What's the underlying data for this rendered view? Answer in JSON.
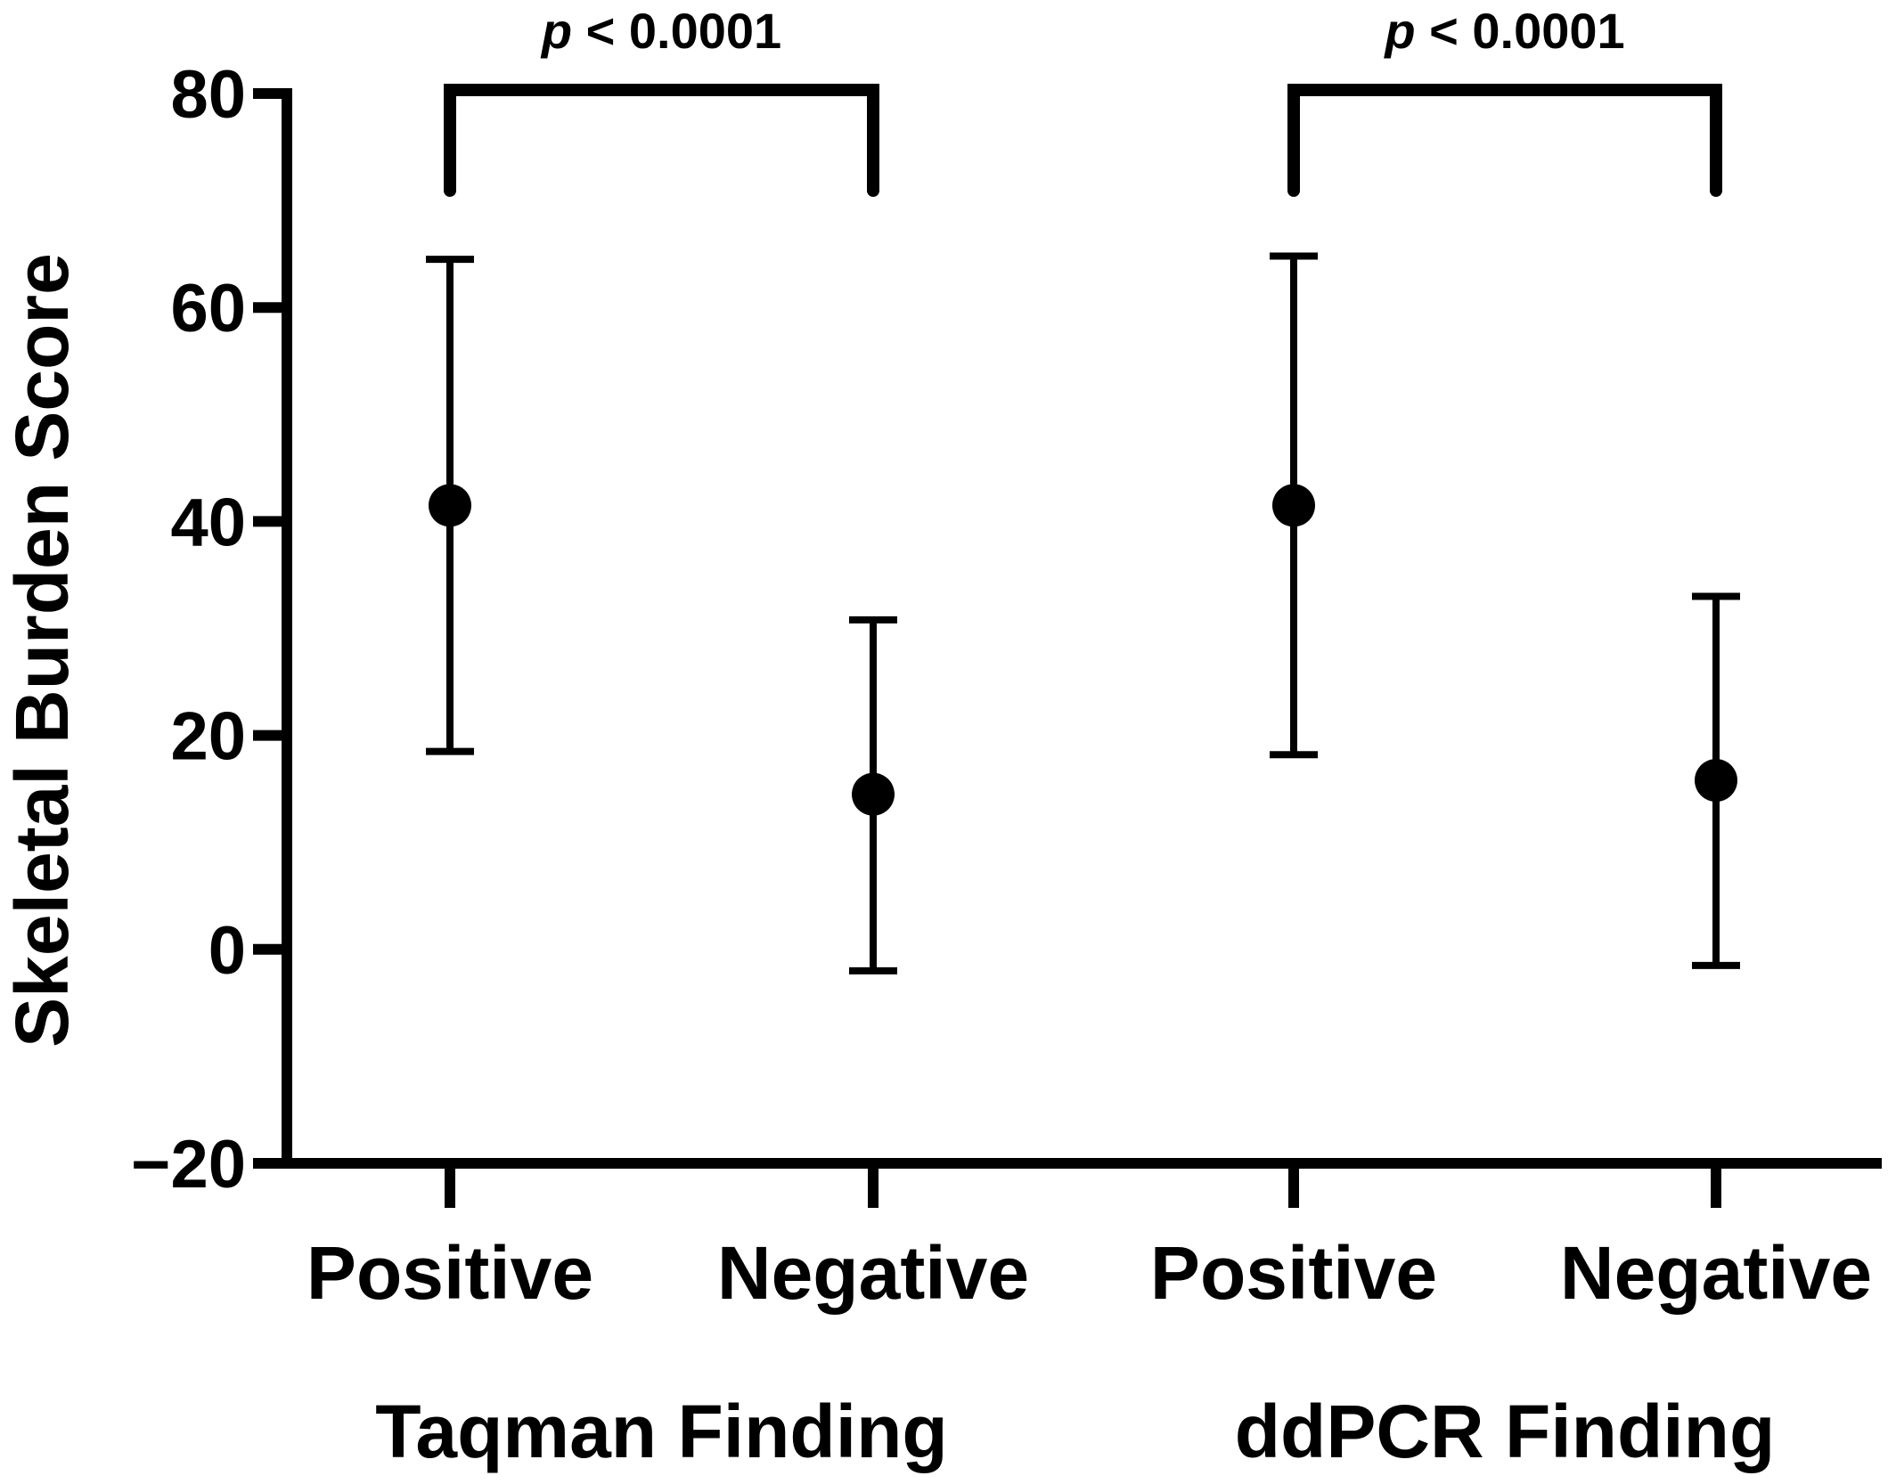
{
  "chart_data": {
    "type": "scatter",
    "ylabel": "Skeletal Burden Score",
    "ylim": [
      -20,
      80
    ],
    "yticks": [
      "80",
      "60",
      "40",
      "20",
      "0",
      "−20"
    ],
    "ytick_values": [
      80,
      60,
      40,
      20,
      0,
      -20
    ],
    "categories": [
      "Positive",
      "Negative",
      "Positive",
      "Negative"
    ],
    "groups": [
      {
        "label": "Taqman Finding",
        "members": [
          0,
          1
        ],
        "comparison": {
          "p_prefix": "p",
          "p_text": " < 0.0001"
        }
      },
      {
        "label": "ddPCR Finding",
        "members": [
          2,
          3
        ],
        "comparison": {
          "p_prefix": "p",
          "p_text": " < 0.0001"
        }
      }
    ],
    "points": [
      {
        "mean": 41.5,
        "lower": 18.5,
        "upper": 64.5
      },
      {
        "mean": 14.5,
        "lower": -2.0,
        "upper": 30.8
      },
      {
        "mean": 41.5,
        "lower": 18.2,
        "upper": 64.8
      },
      {
        "mean": 15.8,
        "lower": -1.5,
        "upper": 33.0
      }
    ],
    "colors": {
      "marks": "#000000",
      "background": "#ffffff"
    },
    "grid": false,
    "legend": "none"
  }
}
